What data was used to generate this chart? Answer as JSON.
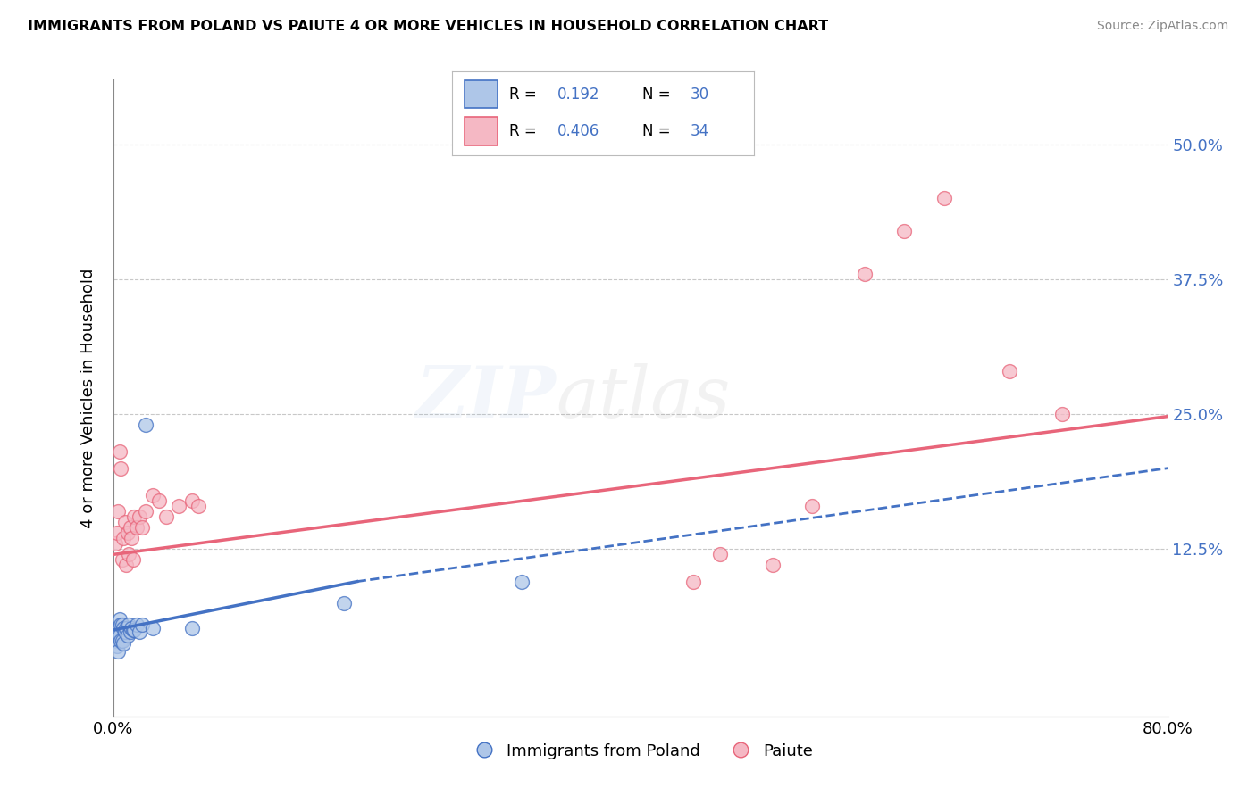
{
  "title": "IMMIGRANTS FROM POLAND VS PAIUTE 4 OR MORE VEHICLES IN HOUSEHOLD CORRELATION CHART",
  "source": "Source: ZipAtlas.com",
  "ylabel": "4 or more Vehicles in Household",
  "yticks": [
    0.0,
    0.125,
    0.25,
    0.375,
    0.5
  ],
  "ytick_labels": [
    "",
    "12.5%",
    "25.0%",
    "37.5%",
    "50.0%"
  ],
  "xlim": [
    0.0,
    0.8
  ],
  "ylim": [
    -0.03,
    0.56
  ],
  "legend_label1": "Immigrants from Poland",
  "legend_label2": "Paiute",
  "r1": "0.192",
  "n1": "30",
  "r2": "0.406",
  "n2": "34",
  "color1": "#aec6e8",
  "color2": "#f5b8c4",
  "line_color1": "#4472c4",
  "line_color2": "#e8657a",
  "background_color": "#ffffff",
  "grid_color": "#c8c8c8",
  "scatter1_x": [
    0.001,
    0.002,
    0.003,
    0.003,
    0.004,
    0.004,
    0.005,
    0.005,
    0.006,
    0.006,
    0.007,
    0.007,
    0.008,
    0.008,
    0.009,
    0.01,
    0.011,
    0.012,
    0.013,
    0.014,
    0.015,
    0.016,
    0.018,
    0.02,
    0.022,
    0.025,
    0.03,
    0.06,
    0.175,
    0.31
  ],
  "scatter1_y": [
    0.04,
    0.045,
    0.035,
    0.05,
    0.03,
    0.045,
    0.045,
    0.06,
    0.04,
    0.055,
    0.04,
    0.055,
    0.038,
    0.052,
    0.048,
    0.052,
    0.045,
    0.055,
    0.048,
    0.052,
    0.05,
    0.05,
    0.055,
    0.048,
    0.055,
    0.24,
    0.052,
    0.052,
    0.075,
    0.095
  ],
  "scatter2_x": [
    0.002,
    0.003,
    0.004,
    0.005,
    0.006,
    0.007,
    0.008,
    0.009,
    0.01,
    0.011,
    0.012,
    0.013,
    0.014,
    0.015,
    0.016,
    0.018,
    0.02,
    0.022,
    0.025,
    0.03,
    0.035,
    0.04,
    0.05,
    0.06,
    0.065,
    0.44,
    0.46,
    0.5,
    0.53,
    0.57,
    0.6,
    0.63,
    0.68,
    0.72
  ],
  "scatter2_y": [
    0.13,
    0.14,
    0.16,
    0.215,
    0.2,
    0.115,
    0.135,
    0.15,
    0.11,
    0.14,
    0.12,
    0.145,
    0.135,
    0.115,
    0.155,
    0.145,
    0.155,
    0.145,
    0.16,
    0.175,
    0.17,
    0.155,
    0.165,
    0.17,
    0.165,
    0.095,
    0.12,
    0.11,
    0.165,
    0.38,
    0.42,
    0.45,
    0.29,
    0.25
  ],
  "trendline1_x0": 0.0,
  "trendline1_x_solid_end": 0.185,
  "trendline1_x1": 0.8,
  "trendline1_y0": 0.05,
  "trendline1_y_solid_end": 0.095,
  "trendline1_y1": 0.2,
  "trendline2_x0": 0.0,
  "trendline2_x1": 0.8,
  "trendline2_y0": 0.12,
  "trendline2_y1": 0.248
}
